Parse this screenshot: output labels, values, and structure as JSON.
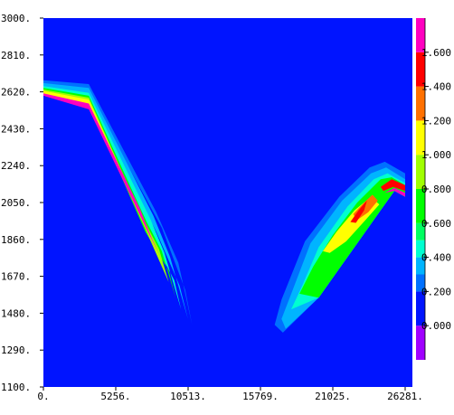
{
  "chart_data": {
    "type": "heatmap",
    "title": "",
    "xlabel": "",
    "ylabel": "",
    "xlim": [
      0,
      27300
    ],
    "ylim": [
      1100,
      3000
    ],
    "x_ticks": [
      {
        "value": 0,
        "label": "0."
      },
      {
        "value": 5256,
        "label": "5256."
      },
      {
        "value": 10513,
        "label": "10513."
      },
      {
        "value": 15769,
        "label": "15769."
      },
      {
        "value": 21025,
        "label": "21025."
      },
      {
        "value": 26281,
        "label": "26281."
      }
    ],
    "y_ticks": [
      {
        "value": 3000,
        "label": "3000."
      },
      {
        "value": 2810,
        "label": "2810."
      },
      {
        "value": 2620,
        "label": "2620."
      },
      {
        "value": 2430,
        "label": "2430."
      },
      {
        "value": 2240,
        "label": "2240."
      },
      {
        "value": 2050,
        "label": "2050."
      },
      {
        "value": 1860,
        "label": "1860."
      },
      {
        "value": 1670,
        "label": "1670."
      },
      {
        "value": 1480,
        "label": "1480."
      },
      {
        "value": 1290,
        "label": "1290."
      },
      {
        "value": 1100,
        "label": "1100."
      }
    ],
    "terrain_profile": [
      {
        "x": 0,
        "y": 2600
      },
      {
        "x": 3300,
        "y": 2530
      },
      {
        "x": 11300,
        "y": 1400
      },
      {
        "x": 14200,
        "y": 1130
      },
      {
        "x": 16700,
        "y": 1190
      },
      {
        "x": 25500,
        "y": 2110
      },
      {
        "x": 26281,
        "y": 2080
      }
    ],
    "colorbar": {
      "min": -0.2,
      "max": 1.8,
      "ticks": [
        "0.000",
        "0.200",
        "0.400",
        "0.600",
        "0.800",
        "1.000",
        "1.200",
        "1.400",
        "1.600"
      ],
      "bands": [
        {
          "from": -0.2,
          "to": 0.0,
          "color": "#a000ff"
        },
        {
          "from": 0.0,
          "to": 0.2,
          "color": "#0014ff"
        },
        {
          "from": 0.2,
          "to": 0.3,
          "color": "#0070ff"
        },
        {
          "from": 0.3,
          "to": 0.4,
          "color": "#00b4ff"
        },
        {
          "from": 0.4,
          "to": 0.5,
          "color": "#00ffd0"
        },
        {
          "from": 0.5,
          "to": 0.6,
          "color": "#00ff60"
        },
        {
          "from": 0.6,
          "to": 0.8,
          "color": "#00ff00"
        },
        {
          "from": 0.8,
          "to": 1.0,
          "color": "#a0ff00"
        },
        {
          "from": 1.0,
          "to": 1.2,
          "color": "#ffff00"
        },
        {
          "from": 1.2,
          "to": 1.4,
          "color": "#ff7000"
        },
        {
          "from": 1.4,
          "to": 1.6,
          "color": "#ff0000"
        },
        {
          "from": 1.6,
          "to": 1.8,
          "color": "#ff00c0"
        }
      ]
    },
    "background_color": "#0014ff",
    "contour_bands": [
      {
        "level": 0.2,
        "color": "#0070ff",
        "points": [
          [
            0,
            2680
          ],
          [
            3300,
            2660
          ],
          [
            8200,
            2000
          ],
          [
            9800,
            1740
          ],
          [
            10800,
            1420
          ],
          [
            10300,
            1600
          ],
          [
            8600,
            1920
          ],
          [
            3300,
            2610
          ],
          [
            0,
            2650
          ]
        ]
      },
      {
        "level": 0.3,
        "color": "#00b4ff",
        "points": [
          [
            0,
            2665
          ],
          [
            3300,
            2640
          ],
          [
            8000,
            1980
          ],
          [
            9200,
            1770
          ],
          [
            10500,
            1450
          ],
          [
            9900,
            1620
          ],
          [
            8200,
            1900
          ],
          [
            3300,
            2590
          ],
          [
            0,
            2640
          ]
        ]
      },
      {
        "level": 0.4,
        "color": "#00ffd0",
        "points": [
          [
            0,
            2650
          ],
          [
            3300,
            2615
          ],
          [
            7800,
            1960
          ],
          [
            8800,
            1790
          ],
          [
            10000,
            1500
          ],
          [
            9500,
            1650
          ],
          [
            7800,
            1880
          ],
          [
            3300,
            2575
          ],
          [
            0,
            2630
          ]
        ]
      },
      {
        "level": 0.6,
        "color": "#00ff00",
        "points": [
          [
            0,
            2640
          ],
          [
            3300,
            2600
          ],
          [
            7500,
            1950
          ],
          [
            8600,
            1800
          ],
          [
            9600,
            1560
          ],
          [
            9100,
            1700
          ],
          [
            7400,
            1900
          ],
          [
            3300,
            2565
          ],
          [
            0,
            2620
          ]
        ]
      },
      {
        "level": 0.8,
        "color": "#a0ff00",
        "points": [
          [
            0,
            2632
          ],
          [
            3300,
            2590
          ],
          [
            7300,
            1960
          ],
          [
            8400,
            1810
          ],
          [
            9100,
            1640
          ],
          [
            7300,
            1930
          ],
          [
            3300,
            2555
          ],
          [
            0,
            2615
          ]
        ]
      },
      {
        "level": 1.0,
        "color": "#ffff00",
        "points": [
          [
            0,
            2625
          ],
          [
            3300,
            2580
          ],
          [
            7100,
            1990
          ],
          [
            8000,
            1840
          ],
          [
            8700,
            1720
          ],
          [
            7200,
            1960
          ],
          [
            3300,
            2550
          ],
          [
            0,
            2610
          ]
        ]
      },
      {
        "level": 1.6,
        "color": "#ff00c0",
        "points": [
          [
            0,
            2612
          ],
          [
            3300,
            2560
          ],
          [
            7000,
            2020
          ],
          [
            7900,
            1860
          ],
          [
            8400,
            1780
          ],
          [
            3300,
            2530
          ],
          [
            0,
            2600
          ]
        ]
      },
      {
        "level": 0.2,
        "color": "#0070ff",
        "points": [
          [
            16800,
            1420
          ],
          [
            17300,
            1550
          ],
          [
            19000,
            1850
          ],
          [
            21500,
            2080
          ],
          [
            23700,
            2230
          ],
          [
            24800,
            2260
          ],
          [
            26281,
            2200
          ],
          [
            26281,
            2080
          ],
          [
            25500,
            2110
          ],
          [
            20000,
            1560
          ],
          [
            17400,
            1380
          ]
        ]
      },
      {
        "level": 0.3,
        "color": "#00b4ff",
        "points": [
          [
            17300,
            1450
          ],
          [
            17900,
            1560
          ],
          [
            19400,
            1840
          ],
          [
            21700,
            2060
          ],
          [
            23800,
            2200
          ],
          [
            24900,
            2230
          ],
          [
            26281,
            2170
          ],
          [
            26281,
            2080
          ],
          [
            25500,
            2110
          ],
          [
            20000,
            1560
          ],
          [
            17600,
            1400
          ]
        ]
      },
      {
        "level": 0.4,
        "color": "#00ffd0",
        "points": [
          [
            18000,
            1500
          ],
          [
            18800,
            1620
          ],
          [
            20000,
            1820
          ],
          [
            22100,
            2030
          ],
          [
            24000,
            2170
          ],
          [
            25000,
            2200
          ],
          [
            26281,
            2150
          ],
          [
            26281,
            2080
          ],
          [
            25500,
            2110
          ],
          [
            20000,
            1560
          ]
        ]
      },
      {
        "level": 0.6,
        "color": "#00ff00",
        "points": [
          [
            18600,
            1580
          ],
          [
            19600,
            1720
          ],
          [
            21000,
            1880
          ],
          [
            22800,
            2050
          ],
          [
            24500,
            2170
          ],
          [
            25300,
            2180
          ],
          [
            26281,
            2140
          ],
          [
            26281,
            2080
          ],
          [
            25500,
            2110
          ],
          [
            20000,
            1560
          ]
        ]
      },
      {
        "level": 1.0,
        "color": "#ffff00",
        "points": [
          [
            20300,
            1800
          ],
          [
            21300,
            1900
          ],
          [
            22600,
            2010
          ],
          [
            23800,
            2080
          ],
          [
            24400,
            2040
          ],
          [
            23400,
            1960
          ],
          [
            22000,
            1850
          ],
          [
            20800,
            1790
          ]
        ]
      },
      {
        "level": 1.2,
        "color": "#ff7000",
        "points": [
          [
            22500,
            1990
          ],
          [
            23300,
            2050
          ],
          [
            23900,
            2090
          ],
          [
            24300,
            2060
          ],
          [
            23600,
            2000
          ],
          [
            22800,
            1960
          ]
        ]
      },
      {
        "level": 1.4,
        "color": "#ff0000",
        "points": [
          [
            22300,
            1950
          ],
          [
            22900,
            2010
          ],
          [
            23500,
            2060
          ],
          [
            23300,
            2010
          ],
          [
            22700,
            1945
          ]
        ]
      },
      {
        "level": 1.4,
        "color": "#ff0000",
        "points": [
          [
            24500,
            2130
          ],
          [
            25300,
            2170
          ],
          [
            26281,
            2140
          ],
          [
            26281,
            2110
          ],
          [
            25400,
            2130
          ],
          [
            24700,
            2110
          ]
        ]
      },
      {
        "level": 1.6,
        "color": "#ff00c0",
        "points": [
          [
            24800,
            2100
          ],
          [
            25500,
            2125
          ],
          [
            26281,
            2100
          ],
          [
            26281,
            2080
          ],
          [
            25500,
            2110
          ]
        ]
      }
    ]
  }
}
